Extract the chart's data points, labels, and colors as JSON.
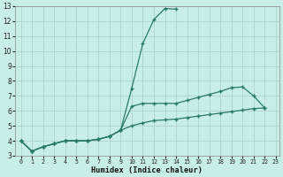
{
  "x": [
    0,
    1,
    2,
    3,
    4,
    5,
    6,
    7,
    8,
    9,
    10,
    11,
    12,
    13,
    14,
    15,
    16,
    17,
    18,
    19,
    20,
    21,
    22,
    23
  ],
  "series": {
    "s1": [
      4.0,
      3.3,
      3.6,
      3.8,
      4.0,
      4.0,
      4.0,
      4.1,
      4.3,
      4.7,
      7.5,
      10.5,
      12.1,
      12.85,
      12.8,
      null,
      null,
      null,
      null,
      null,
      null,
      null,
      null,
      null
    ],
    "s2": [
      4.0,
      3.3,
      3.6,
      3.8,
      4.0,
      4.0,
      4.0,
      4.1,
      4.3,
      4.7,
      6.3,
      6.5,
      6.5,
      6.5,
      6.5,
      6.7,
      6.9,
      7.1,
      7.3,
      7.55,
      7.6,
      7.0,
      6.2,
      null
    ],
    "s3": [
      4.0,
      3.3,
      3.6,
      3.8,
      4.0,
      4.0,
      4.0,
      4.1,
      4.3,
      4.7,
      5.0,
      5.2,
      5.35,
      5.4,
      5.45,
      5.55,
      5.65,
      5.75,
      5.85,
      5.95,
      6.05,
      6.15,
      6.2,
      null
    ]
  },
  "color": "#2a7a6a",
  "bg_color": "#c8eeea",
  "grid_color": "#b0d4ce",
  "xlabel": "Humidex (Indice chaleur)",
  "ylim": [
    3,
    13
  ],
  "xlim": [
    0,
    23
  ],
  "yticks": [
    3,
    4,
    5,
    6,
    7,
    8,
    9,
    10,
    11,
    12,
    13
  ],
  "xticks": [
    0,
    1,
    2,
    3,
    4,
    5,
    6,
    7,
    8,
    9,
    10,
    11,
    12,
    13,
    14,
    15,
    16,
    17,
    18,
    19,
    20,
    21,
    22,
    23
  ]
}
